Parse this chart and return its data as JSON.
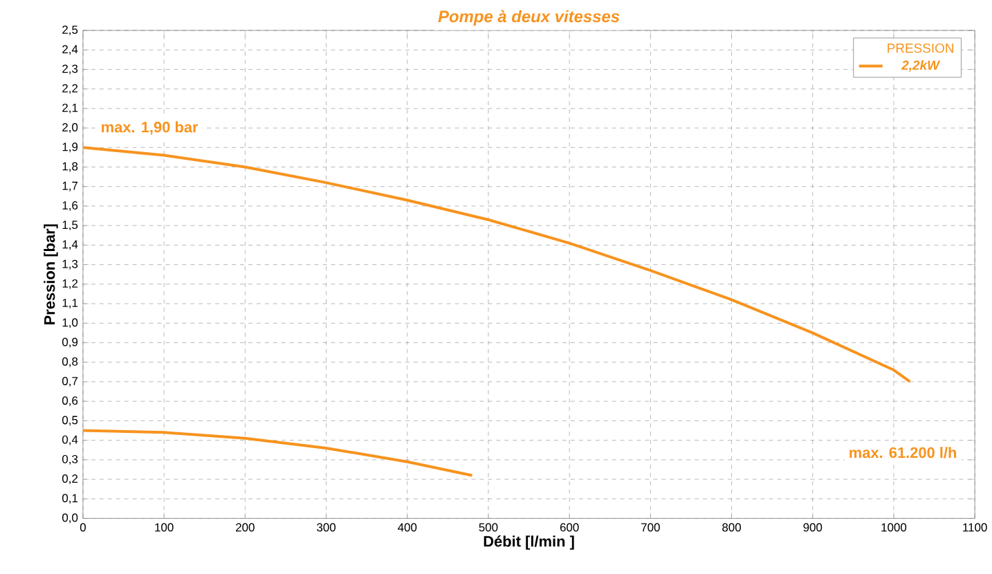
{
  "chart_data": {
    "type": "line",
    "title": "Pompe à deux vitesses",
    "xlabel": "Débit [l/min ]",
    "ylabel": "Pression [bar]",
    "legend_title": "PRESSION",
    "legend": "top right",
    "grid": true,
    "line_style": "solid",
    "marker": "none",
    "xlim": [
      0,
      1100
    ],
    "xticks": [
      0,
      100,
      200,
      300,
      400,
      500,
      600,
      700,
      800,
      900,
      1000,
      1100
    ],
    "ylim": [
      0,
      2.5
    ],
    "yticks": [
      {
        "value": 0,
        "label": "0,0"
      },
      {
        "value": 0.1,
        "label": "0,1"
      },
      {
        "value": 0.2,
        "label": "0,2"
      },
      {
        "value": 0.3,
        "label": "0,3"
      },
      {
        "value": 0.4,
        "label": "0,4"
      },
      {
        "value": 0.5,
        "label": "0,5"
      },
      {
        "value": 0.6,
        "label": "0,6"
      },
      {
        "value": 0.7,
        "label": "0,7"
      },
      {
        "value": 0.8,
        "label": "0,8"
      },
      {
        "value": 0.9,
        "label": "0,9"
      },
      {
        "value": 1.0,
        "label": "1,0"
      },
      {
        "value": 1.1,
        "label": "1,1"
      },
      {
        "value": 1.2,
        "label": "1,2"
      },
      {
        "value": 1.3,
        "label": "1,3"
      },
      {
        "value": 1.4,
        "label": "1,4"
      },
      {
        "value": 1.5,
        "label": "1,5"
      },
      {
        "value": 1.6,
        "label": "1,6"
      },
      {
        "value": 1.7,
        "label": "1,7"
      },
      {
        "value": 1.8,
        "label": "1,8"
      },
      {
        "value": 1.9,
        "label": "1,9"
      },
      {
        "value": 2.0,
        "label": "2,0"
      },
      {
        "value": 2.1,
        "label": "2,1"
      },
      {
        "value": 2.2,
        "label": "2,2"
      },
      {
        "value": 2.3,
        "label": "2,3"
      },
      {
        "value": 2.4,
        "label": "2,4"
      },
      {
        "value": 2.5,
        "label": "2,5"
      }
    ],
    "series": [
      {
        "name": "2,2kW",
        "color": "#f7931e",
        "x": [
          0,
          100,
          200,
          300,
          400,
          500,
          600,
          700,
          800,
          900,
          1000,
          1020
        ],
        "values": [
          1.9,
          1.86,
          1.8,
          1.72,
          1.63,
          1.53,
          1.41,
          1.27,
          1.12,
          0.95,
          0.76,
          0.7
        ]
      },
      {
        "color": "#f7931e",
        "x": [
          0,
          100,
          200,
          300,
          400,
          480
        ],
        "values": [
          0.45,
          0.44,
          0.41,
          0.36,
          0.29,
          0.22
        ]
      }
    ],
    "annotations": [
      "max. 1,90 bar",
      "max. 61.200 l/h"
    ]
  }
}
